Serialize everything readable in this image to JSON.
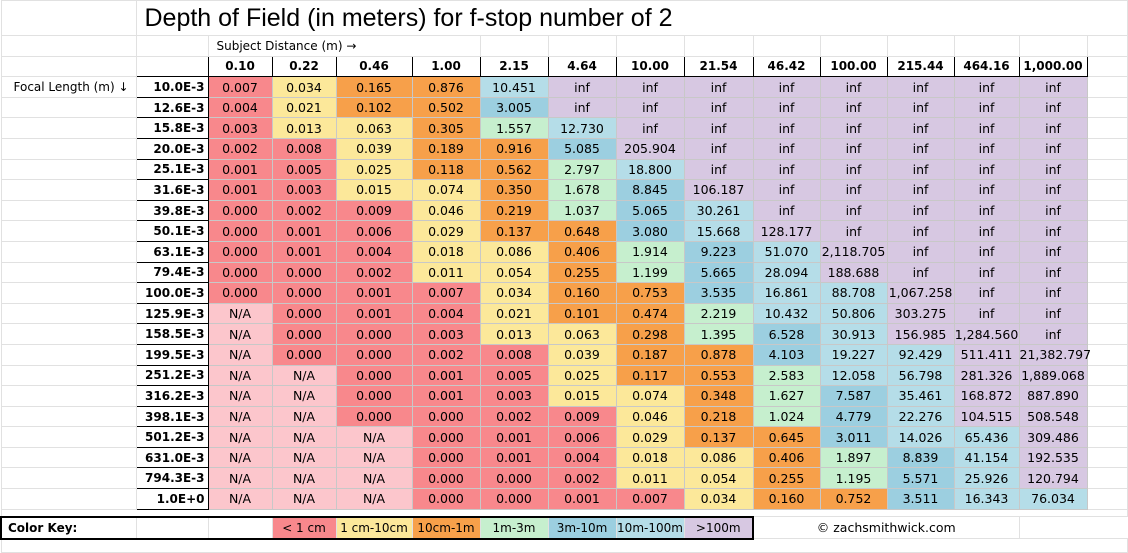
{
  "title": "Depth of Field (in meters) for f-stop number of 2",
  "subject_label": "Subject Distance (m) →",
  "focal_label": "Focal Length (m) ↓",
  "copyright": "© zachsmithwick.com",
  "colors": {
    "lt1cm": "#f8888c",
    "1to10cm": "#fce89a",
    "10cm1m": "#f7a04a",
    "1to3m": "#c6efce",
    "3to10m": "#9ccfe0",
    "10to100m": "#b5dde8",
    "gt100m": "#d7c8e2",
    "na": "#fcc6cc"
  },
  "color_key": {
    "label": "Color Key:",
    "items": [
      {
        "text": "< 1 cm",
        "cls": "lt1cm"
      },
      {
        "text": "1 cm-10cm",
        "cls": "1to10cm"
      },
      {
        "text": "10cm-1m",
        "cls": "10cm1m"
      },
      {
        "text": "1m-3m",
        "cls": "1to3m"
      },
      {
        "text": "3m-10m",
        "cls": "3to10m"
      },
      {
        "text": "10m-100m",
        "cls": "10to100m"
      },
      {
        "text": ">100m",
        "cls": "gt100m"
      }
    ]
  },
  "subject_distances": [
    "0.10",
    "0.22",
    "0.46",
    "1.00",
    "2.15",
    "4.64",
    "10.00",
    "21.54",
    "46.42",
    "100.00",
    "215.44",
    "464.16",
    "1,000.00"
  ],
  "rows": [
    {
      "focal": "10.0E-3",
      "values": [
        "0.007",
        "0.034",
        "0.165",
        "0.876",
        "10.451",
        "inf",
        "inf",
        "inf",
        "inf",
        "inf",
        "inf",
        "inf",
        "inf"
      ]
    },
    {
      "focal": "12.6E-3",
      "values": [
        "0.004",
        "0.021",
        "0.102",
        "0.502",
        "3.005",
        "inf",
        "inf",
        "inf",
        "inf",
        "inf",
        "inf",
        "inf",
        "inf"
      ]
    },
    {
      "focal": "15.8E-3",
      "values": [
        "0.003",
        "0.013",
        "0.063",
        "0.305",
        "1.557",
        "12.730",
        "inf",
        "inf",
        "inf",
        "inf",
        "inf",
        "inf",
        "inf"
      ]
    },
    {
      "focal": "20.0E-3",
      "values": [
        "0.002",
        "0.008",
        "0.039",
        "0.189",
        "0.916",
        "5.085",
        "205.904",
        "inf",
        "inf",
        "inf",
        "inf",
        "inf",
        "inf"
      ]
    },
    {
      "focal": "25.1E-3",
      "values": [
        "0.001",
        "0.005",
        "0.025",
        "0.118",
        "0.562",
        "2.797",
        "18.800",
        "inf",
        "inf",
        "inf",
        "inf",
        "inf",
        "inf"
      ]
    },
    {
      "focal": "31.6E-3",
      "values": [
        "0.001",
        "0.003",
        "0.015",
        "0.074",
        "0.350",
        "1.678",
        "8.845",
        "106.187",
        "inf",
        "inf",
        "inf",
        "inf",
        "inf"
      ]
    },
    {
      "focal": "39.8E-3",
      "values": [
        "0.000",
        "0.002",
        "0.009",
        "0.046",
        "0.219",
        "1.037",
        "5.065",
        "30.261",
        "inf",
        "inf",
        "inf",
        "inf",
        "inf"
      ]
    },
    {
      "focal": "50.1E-3",
      "values": [
        "0.000",
        "0.001",
        "0.006",
        "0.029",
        "0.137",
        "0.648",
        "3.080",
        "15.668",
        "128.177",
        "inf",
        "inf",
        "inf",
        "inf"
      ]
    },
    {
      "focal": "63.1E-3",
      "values": [
        "0.000",
        "0.001",
        "0.004",
        "0.018",
        "0.086",
        "0.406",
        "1.914",
        "9.223",
        "51.070",
        "2,118.705",
        "inf",
        "inf",
        "inf"
      ]
    },
    {
      "focal": "79.4E-3",
      "values": [
        "0.000",
        "0.000",
        "0.002",
        "0.011",
        "0.054",
        "0.255",
        "1.199",
        "5.665",
        "28.094",
        "188.688",
        "inf",
        "inf",
        "inf"
      ]
    },
    {
      "focal": "100.0E-3",
      "values": [
        "0.000",
        "0.000",
        "0.001",
        "0.007",
        "0.034",
        "0.160",
        "0.753",
        "3.535",
        "16.861",
        "88.708",
        "1,067.258",
        "inf",
        "inf"
      ]
    },
    {
      "focal": "125.9E-3",
      "values": [
        "N/A",
        "0.000",
        "0.001",
        "0.004",
        "0.021",
        "0.101",
        "0.474",
        "2.219",
        "10.432",
        "50.806",
        "303.275",
        "inf",
        "inf"
      ]
    },
    {
      "focal": "158.5E-3",
      "values": [
        "N/A",
        "0.000",
        "0.000",
        "0.003",
        "0.013",
        "0.063",
        "0.298",
        "1.395",
        "6.528",
        "30.913",
        "156.985",
        "1,284.560",
        "inf"
      ]
    },
    {
      "focal": "199.5E-3",
      "values": [
        "N/A",
        "0.000",
        "0.000",
        "0.002",
        "0.008",
        "0.039",
        "0.187",
        "0.878",
        "4.103",
        "19.227",
        "92.429",
        "511.411",
        "21,382.797"
      ]
    },
    {
      "focal": "251.2E-3",
      "values": [
        "N/A",
        "N/A",
        "0.000",
        "0.001",
        "0.005",
        "0.025",
        "0.117",
        "0.553",
        "2.583",
        "12.058",
        "56.798",
        "281.326",
        "1,889.068"
      ]
    },
    {
      "focal": "316.2E-3",
      "values": [
        "N/A",
        "N/A",
        "0.000",
        "0.001",
        "0.003",
        "0.015",
        "0.074",
        "0.348",
        "1.627",
        "7.587",
        "35.461",
        "168.872",
        "887.890"
      ]
    },
    {
      "focal": "398.1E-3",
      "values": [
        "N/A",
        "N/A",
        "0.000",
        "0.000",
        "0.002",
        "0.009",
        "0.046",
        "0.218",
        "1.024",
        "4.779",
        "22.276",
        "104.515",
        "508.548"
      ]
    },
    {
      "focal": "501.2E-3",
      "values": [
        "N/A",
        "N/A",
        "N/A",
        "0.000",
        "0.001",
        "0.006",
        "0.029",
        "0.137",
        "0.645",
        "3.011",
        "14.026",
        "65.436",
        "309.486"
      ]
    },
    {
      "focal": "631.0E-3",
      "values": [
        "N/A",
        "N/A",
        "N/A",
        "0.000",
        "0.001",
        "0.004",
        "0.018",
        "0.086",
        "0.406",
        "1.897",
        "8.839",
        "41.154",
        "192.535"
      ]
    },
    {
      "focal": "794.3E-3",
      "values": [
        "N/A",
        "N/A",
        "N/A",
        "0.000",
        "0.000",
        "0.002",
        "0.011",
        "0.054",
        "0.255",
        "1.195",
        "5.571",
        "25.926",
        "120.794"
      ]
    },
    {
      "focal": "1.0E+0",
      "values": [
        "N/A",
        "N/A",
        "N/A",
        "0.000",
        "0.000",
        "0.001",
        "0.007",
        "0.034",
        "0.160",
        "0.752",
        "3.511",
        "16.343",
        "76.034"
      ]
    }
  ]
}
